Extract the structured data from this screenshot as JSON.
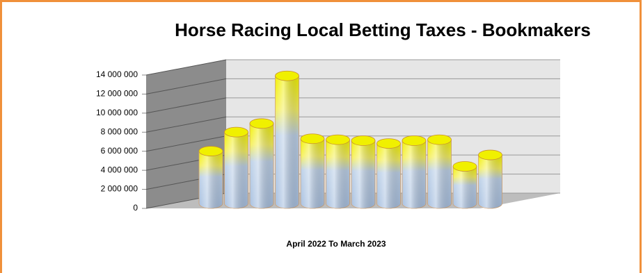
{
  "chart_data": {
    "type": "bar3d",
    "title": "Horse Racing Local Betting Taxes - Bookmakers",
    "x_label": "April 2022  To March 2023",
    "categories": [
      null,
      null,
      null,
      null,
      null,
      null,
      null,
      null,
      null,
      null,
      null,
      null
    ],
    "values": [
      5500000,
      7500000,
      8400000,
      13400000,
      6800000,
      6700000,
      6600000,
      6300000,
      6600000,
      6700000,
      3900000,
      5100000
    ],
    "ylim": [
      0,
      14000000
    ],
    "yticks": [
      0,
      {
        "value": 2000000,
        "label": "2 000 000"
      },
      {
        "value": 4000000,
        "label": "4 000 000"
      },
      {
        "value": 6000000,
        "label": "6 000 000"
      },
      {
        "value": 8000000,
        "label": "8 000 000"
      },
      {
        "value": 10000000,
        "label": "10 000 000"
      },
      {
        "value": 12000000,
        "label": "12 000 000"
      },
      {
        "value": 14000000,
        "label": "14 000 000"
      }
    ],
    "grid": true
  }
}
